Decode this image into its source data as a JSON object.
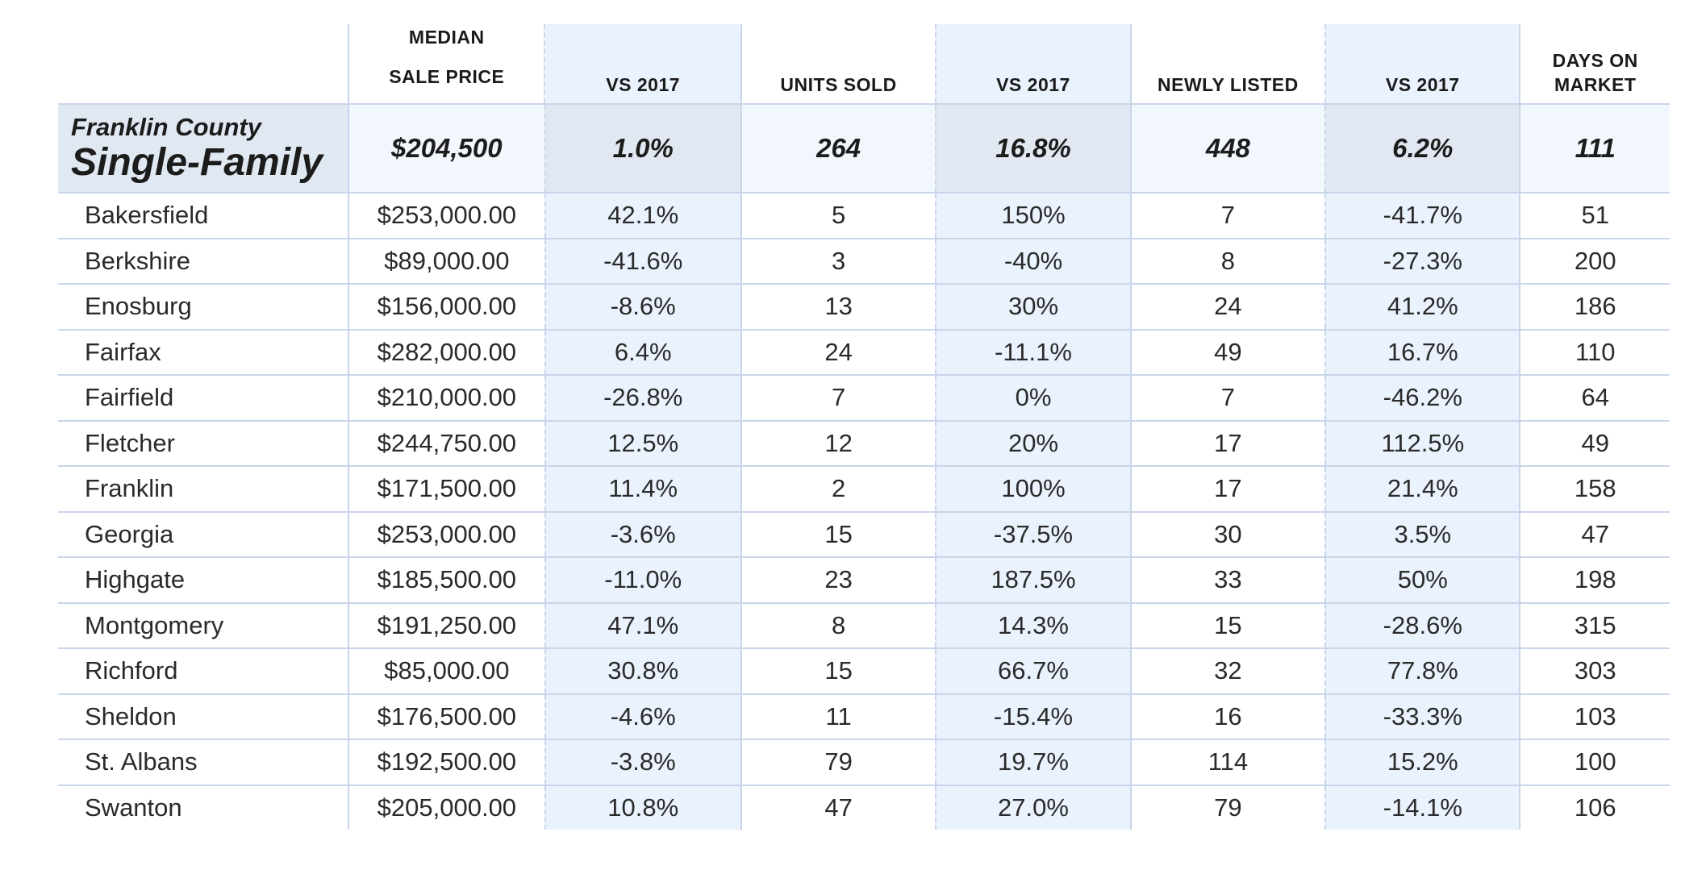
{
  "columns": {
    "median_sale_price": [
      "MEDIAN",
      "SALE PRICE"
    ],
    "vs_2017_a": "VS 2017",
    "units_sold": "UNITS SOLD",
    "vs_2017_b": "VS 2017",
    "newly_listed": "NEWLY LISTED",
    "vs_2017_c": "VS 2017",
    "days_on_market": [
      "DAYS ON",
      "MARKET"
    ]
  },
  "summary": {
    "county": "Franklin County",
    "product": "Single-Family",
    "median_sale_price": "$204,500",
    "price_vs_2017": "1.0%",
    "units_sold": "264",
    "units_vs_2017": "16.8%",
    "newly_listed": "448",
    "listed_vs_2017": "6.2%",
    "days_on_market": "111"
  },
  "rows": [
    {
      "town": "Bakersfield",
      "price": "$253,000.00",
      "price_vs": "42.1%",
      "units": "5",
      "units_vs": "150%",
      "listed": "7",
      "listed_vs": "-41.7%",
      "dom": "51"
    },
    {
      "town": "Berkshire",
      "price": "$89,000.00",
      "price_vs": "-41.6%",
      "units": "3",
      "units_vs": "-40%",
      "listed": "8",
      "listed_vs": "-27.3%",
      "dom": "200"
    },
    {
      "town": "Enosburg",
      "price": "$156,000.00",
      "price_vs": "-8.6%",
      "units": "13",
      "units_vs": "30%",
      "listed": "24",
      "listed_vs": "41.2%",
      "dom": "186"
    },
    {
      "town": "Fairfax",
      "price": "$282,000.00",
      "price_vs": "6.4%",
      "units": "24",
      "units_vs": "-11.1%",
      "listed": "49",
      "listed_vs": "16.7%",
      "dom": "110"
    },
    {
      "town": "Fairfield",
      "price": "$210,000.00",
      "price_vs": "-26.8%",
      "units": "7",
      "units_vs": "0%",
      "listed": "7",
      "listed_vs": "-46.2%",
      "dom": "64"
    },
    {
      "town": "Fletcher",
      "price": "$244,750.00",
      "price_vs": "12.5%",
      "units": "12",
      "units_vs": "20%",
      "listed": "17",
      "listed_vs": "112.5%",
      "dom": "49"
    },
    {
      "town": "Franklin",
      "price": "$171,500.00",
      "price_vs": "11.4%",
      "units": "2",
      "units_vs": "100%",
      "listed": "17",
      "listed_vs": "21.4%",
      "dom": "158"
    },
    {
      "town": "Georgia",
      "price": "$253,000.00",
      "price_vs": "-3.6%",
      "units": "15",
      "units_vs": "-37.5%",
      "listed": "30",
      "listed_vs": "3.5%",
      "dom": "47"
    },
    {
      "town": "Highgate",
      "price": "$185,500.00",
      "price_vs": "-11.0%",
      "units": "23",
      "units_vs": "187.5%",
      "listed": "33",
      "listed_vs": "50%",
      "dom": "198"
    },
    {
      "town": "Montgomery",
      "price": "$191,250.00",
      "price_vs": "47.1%",
      "units": "8",
      "units_vs": "14.3%",
      "listed": "15",
      "listed_vs": "-28.6%",
      "dom": "315"
    },
    {
      "town": "Richford",
      "price": "$85,000.00",
      "price_vs": "30.8%",
      "units": "15",
      "units_vs": "66.7%",
      "listed": "32",
      "listed_vs": "77.8%",
      "dom": "303"
    },
    {
      "town": "Sheldon",
      "price": "$176,500.00",
      "price_vs": "-4.6%",
      "units": "11",
      "units_vs": "-15.4%",
      "listed": "16",
      "listed_vs": "-33.3%",
      "dom": "103"
    },
    {
      "town": "St. Albans",
      "price": "$192,500.00",
      "price_vs": "-3.8%",
      "units": "79",
      "units_vs": "19.7%",
      "listed": "114",
      "listed_vs": "15.2%",
      "dom": "100"
    },
    {
      "town": "Swanton",
      "price": "$205,000.00",
      "price_vs": "10.8%",
      "units": "47",
      "units_vs": "27.0%",
      "listed": "79",
      "listed_vs": "-14.1%",
      "dom": "106"
    }
  ]
}
